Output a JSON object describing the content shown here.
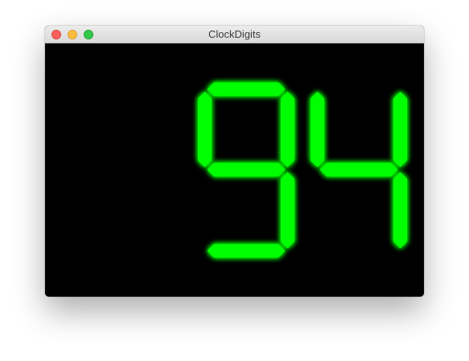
{
  "window": {
    "title": "ClockDigits"
  },
  "display": {
    "value": "94",
    "segment_color": "#00ff00",
    "background_color": "#000000"
  },
  "digits": [
    {
      "char": "9",
      "segments_on": [
        "a",
        "b",
        "c",
        "d",
        "f",
        "g"
      ]
    },
    {
      "char": "4",
      "segments_on": [
        "b",
        "c",
        "f",
        "g"
      ]
    }
  ]
}
